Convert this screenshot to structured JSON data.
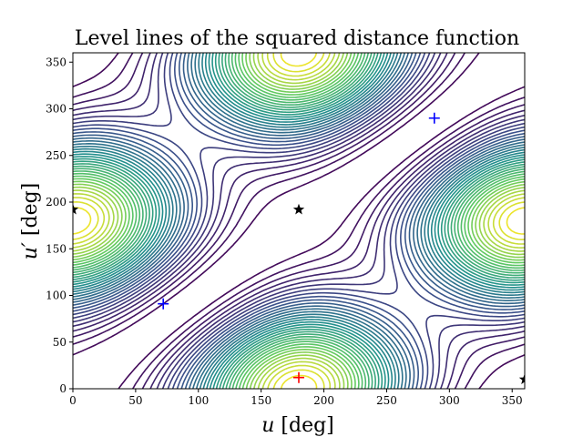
{
  "chart_data": {
    "type": "contour",
    "title": "Level lines of the squared distance function",
    "xlabel_var": "u",
    "xlabel_unit": " [deg]",
    "ylabel_var": "u′",
    "ylabel_unit": " [deg]",
    "xlim": [
      0,
      360
    ],
    "ylim": [
      0,
      360
    ],
    "xticks": [
      0,
      50,
      100,
      150,
      200,
      250,
      300,
      350
    ],
    "yticks": [
      0,
      50,
      100,
      150,
      200,
      250,
      300,
      350
    ],
    "xtick_labels": [
      "0",
      "50",
      "100",
      "150",
      "200",
      "250",
      "300",
      "350"
    ],
    "ytick_labels": [
      "0",
      "50",
      "100",
      "150",
      "200",
      "250",
      "300",
      "350"
    ],
    "colormap": "viridis",
    "colors": {
      "low": "#440154",
      "mid_low": "#3b528b",
      "mid": "#21918c",
      "mid_high": "#5ec962",
      "high": "#fde725"
    },
    "contour_levels": 36,
    "diagonal_band": {
      "slope": 1.0,
      "offset_deg": 0,
      "gap_half_width_deg": 22
    },
    "secondary_ridge_offset_deg": -180,
    "markers": [
      {
        "type": "star",
        "color": "#000000",
        "x": 0,
        "y": 192
      },
      {
        "type": "star",
        "color": "#000000",
        "x": 180,
        "y": 192
      },
      {
        "type": "star",
        "color": "#000000",
        "x": 360,
        "y": 10
      },
      {
        "type": "plus",
        "color": "#0000ff",
        "x": 72,
        "y": 91
      },
      {
        "type": "plus",
        "color": "#0000ff",
        "x": 288,
        "y": 290
      },
      {
        "type": "plus",
        "color": "#ff0000",
        "x": 180,
        "y": 12
      }
    ]
  }
}
